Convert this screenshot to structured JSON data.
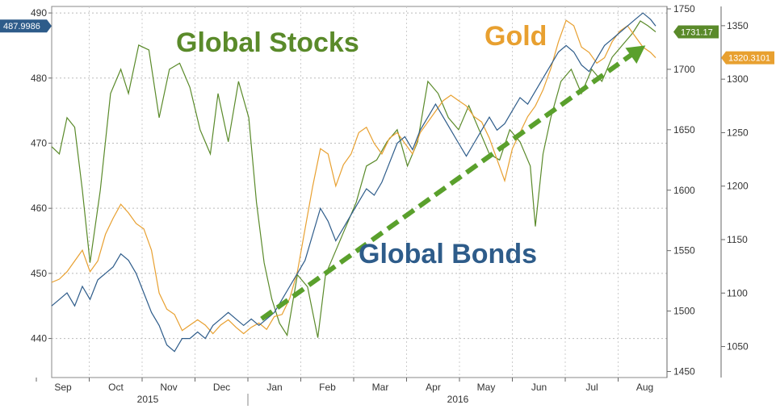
{
  "chart_data": {
    "type": "line",
    "title": "",
    "xlabel": "",
    "ylabel": "",
    "grid": true,
    "legend": "none",
    "x_tick_labels": [
      "Sep",
      "Oct",
      "Nov",
      "Dec",
      "Jan",
      "Feb",
      "Mar",
      "Apr",
      "May",
      "Jun",
      "Jul",
      "Aug"
    ],
    "year_labels": [
      "2015",
      "2016"
    ],
    "axes": {
      "left": {
        "ylim": [
          434,
          491
        ],
        "ticks": [
          440,
          450,
          460,
          470,
          480,
          490
        ]
      },
      "mid": {
        "ylim": [
          1445,
          1752
        ],
        "ticks": [
          1450,
          1500,
          1550,
          1600,
          1650,
          1700,
          1750
        ]
      },
      "right": {
        "ylim": [
          1021,
          1368
        ],
        "ticks": [
          1050,
          1100,
          1150,
          1200,
          1250,
          1300,
          1350
        ]
      }
    },
    "series": [
      {
        "name": "Global Stocks",
        "axis": "mid",
        "color": "#5a8a2a",
        "last_value_tag": "1731.17",
        "values": [
          [
            0,
            1636
          ],
          [
            0.3,
            1630
          ],
          [
            0.6,
            1660
          ],
          [
            0.9,
            1652
          ],
          [
            1.2,
            1600
          ],
          [
            1.5,
            1540
          ],
          [
            1.9,
            1600
          ],
          [
            2.3,
            1680
          ],
          [
            2.7,
            1700
          ],
          [
            3.0,
            1680
          ],
          [
            3.4,
            1720
          ],
          [
            3.8,
            1716
          ],
          [
            4.2,
            1660
          ],
          [
            4.6,
            1700
          ],
          [
            5.0,
            1705
          ],
          [
            5.4,
            1685
          ],
          [
            5.8,
            1650
          ],
          [
            6.2,
            1630
          ],
          [
            6.5,
            1680
          ],
          [
            6.9,
            1640
          ],
          [
            7.3,
            1690
          ],
          [
            7.7,
            1660
          ],
          [
            8.0,
            1590
          ],
          [
            8.3,
            1540
          ],
          [
            8.6,
            1510
          ],
          [
            8.9,
            1490
          ],
          [
            9.2,
            1480
          ],
          [
            9.6,
            1530
          ],
          [
            10.0,
            1520
          ],
          [
            10.4,
            1478
          ],
          [
            10.7,
            1530
          ],
          [
            11.1,
            1550
          ],
          [
            11.5,
            1570
          ],
          [
            11.9,
            1590
          ],
          [
            12.3,
            1620
          ],
          [
            12.7,
            1625
          ],
          [
            13.1,
            1640
          ],
          [
            13.5,
            1650
          ],
          [
            13.9,
            1620
          ],
          [
            14.3,
            1640
          ],
          [
            14.7,
            1690
          ],
          [
            15.1,
            1680
          ],
          [
            15.5,
            1660
          ],
          [
            15.9,
            1650
          ],
          [
            16.3,
            1670
          ],
          [
            16.7,
            1650
          ],
          [
            17.1,
            1630
          ],
          [
            17.5,
            1625
          ],
          [
            17.9,
            1650
          ],
          [
            18.3,
            1640
          ],
          [
            18.7,
            1620
          ],
          [
            18.9,
            1570
          ],
          [
            19.2,
            1630
          ],
          [
            19.5,
            1660
          ],
          [
            19.9,
            1690
          ],
          [
            20.3,
            1700
          ],
          [
            20.7,
            1680
          ],
          [
            21.1,
            1700
          ],
          [
            21.5,
            1690
          ],
          [
            21.9,
            1710
          ],
          [
            22.3,
            1720
          ],
          [
            22.7,
            1730
          ],
          [
            23.0,
            1740
          ],
          [
            23.3,
            1736
          ],
          [
            23.6,
            1731
          ]
        ]
      },
      {
        "name": "Gold",
        "axis": "right",
        "color": "#e8a030",
        "last_value_tag": "1320.3101",
        "values": [
          [
            0,
            1110
          ],
          [
            0.3,
            1113
          ],
          [
            0.6,
            1120
          ],
          [
            0.9,
            1130
          ],
          [
            1.2,
            1140
          ],
          [
            1.5,
            1120
          ],
          [
            1.8,
            1130
          ],
          [
            2.1,
            1155
          ],
          [
            2.4,
            1170
          ],
          [
            2.7,
            1183
          ],
          [
            3.0,
            1175
          ],
          [
            3.3,
            1165
          ],
          [
            3.6,
            1160
          ],
          [
            3.9,
            1140
          ],
          [
            4.2,
            1100
          ],
          [
            4.5,
            1085
          ],
          [
            4.8,
            1080
          ],
          [
            5.1,
            1065
          ],
          [
            5.4,
            1070
          ],
          [
            5.7,
            1075
          ],
          [
            6.0,
            1070
          ],
          [
            6.3,
            1062
          ],
          [
            6.6,
            1070
          ],
          [
            6.9,
            1075
          ],
          [
            7.2,
            1068
          ],
          [
            7.5,
            1062
          ],
          [
            7.8,
            1068
          ],
          [
            8.1,
            1072
          ],
          [
            8.4,
            1066
          ],
          [
            8.7,
            1078
          ],
          [
            9.0,
            1080
          ],
          [
            9.3,
            1095
          ],
          [
            9.6,
            1120
          ],
          [
            9.9,
            1160
          ],
          [
            10.2,
            1200
          ],
          [
            10.5,
            1235
          ],
          [
            10.8,
            1230
          ],
          [
            11.1,
            1200
          ],
          [
            11.4,
            1220
          ],
          [
            11.7,
            1230
          ],
          [
            12.0,
            1250
          ],
          [
            12.3,
            1255
          ],
          [
            12.6,
            1240
          ],
          [
            12.9,
            1230
          ],
          [
            13.2,
            1245
          ],
          [
            13.5,
            1250
          ],
          [
            13.8,
            1240
          ],
          [
            14.1,
            1230
          ],
          [
            14.4,
            1250
          ],
          [
            14.7,
            1260
          ],
          [
            15.0,
            1270
          ],
          [
            15.3,
            1280
          ],
          [
            15.6,
            1285
          ],
          [
            15.9,
            1280
          ],
          [
            16.2,
            1275
          ],
          [
            16.5,
            1265
          ],
          [
            16.8,
            1260
          ],
          [
            17.1,
            1245
          ],
          [
            17.4,
            1225
          ],
          [
            17.7,
            1205
          ],
          [
            18.0,
            1235
          ],
          [
            18.3,
            1250
          ],
          [
            18.6,
            1265
          ],
          [
            18.9,
            1275
          ],
          [
            19.2,
            1290
          ],
          [
            19.5,
            1310
          ],
          [
            19.8,
            1335
          ],
          [
            20.1,
            1355
          ],
          [
            20.4,
            1350
          ],
          [
            20.7,
            1330
          ],
          [
            21.0,
            1325
          ],
          [
            21.3,
            1315
          ],
          [
            21.6,
            1320
          ],
          [
            21.9,
            1335
          ],
          [
            22.2,
            1345
          ],
          [
            22.5,
            1350
          ],
          [
            22.8,
            1340
          ],
          [
            23.1,
            1330
          ],
          [
            23.4,
            1325
          ],
          [
            23.6,
            1320
          ]
        ]
      },
      {
        "name": "Global Bonds",
        "axis": "left",
        "color": "#2e5c8a",
        "last_value_tag": "487.9986",
        "values": [
          [
            0,
            445
          ],
          [
            0.3,
            446
          ],
          [
            0.6,
            447
          ],
          [
            0.9,
            445
          ],
          [
            1.2,
            448
          ],
          [
            1.5,
            446
          ],
          [
            1.8,
            449
          ],
          [
            2.1,
            450
          ],
          [
            2.4,
            451
          ],
          [
            2.7,
            453
          ],
          [
            3.0,
            452
          ],
          [
            3.3,
            450
          ],
          [
            3.6,
            447
          ],
          [
            3.9,
            444
          ],
          [
            4.2,
            442
          ],
          [
            4.5,
            439
          ],
          [
            4.8,
            438
          ],
          [
            5.1,
            440
          ],
          [
            5.4,
            440
          ],
          [
            5.7,
            441
          ],
          [
            6.0,
            440
          ],
          [
            6.3,
            442
          ],
          [
            6.6,
            443
          ],
          [
            6.9,
            444
          ],
          [
            7.2,
            443
          ],
          [
            7.5,
            442
          ],
          [
            7.8,
            443
          ],
          [
            8.1,
            442
          ],
          [
            8.4,
            443
          ],
          [
            8.7,
            444
          ],
          [
            9.0,
            446
          ],
          [
            9.3,
            448
          ],
          [
            9.6,
            450
          ],
          [
            9.9,
            452
          ],
          [
            10.2,
            456
          ],
          [
            10.5,
            460
          ],
          [
            10.8,
            458
          ],
          [
            11.1,
            455
          ],
          [
            11.4,
            457
          ],
          [
            11.7,
            459
          ],
          [
            12.0,
            461
          ],
          [
            12.3,
            463
          ],
          [
            12.6,
            462
          ],
          [
            12.9,
            464
          ],
          [
            13.2,
            467
          ],
          [
            13.5,
            470
          ],
          [
            13.8,
            471
          ],
          [
            14.1,
            469
          ],
          [
            14.4,
            472
          ],
          [
            14.7,
            474
          ],
          [
            15.0,
            476
          ],
          [
            15.3,
            474
          ],
          [
            15.6,
            472
          ],
          [
            15.9,
            470
          ],
          [
            16.2,
            468
          ],
          [
            16.5,
            470
          ],
          [
            16.8,
            472
          ],
          [
            17.1,
            474
          ],
          [
            17.4,
            472
          ],
          [
            17.7,
            473
          ],
          [
            18.0,
            475
          ],
          [
            18.3,
            477
          ],
          [
            18.6,
            476
          ],
          [
            18.9,
            478
          ],
          [
            19.2,
            480
          ],
          [
            19.5,
            482
          ],
          [
            19.8,
            484
          ],
          [
            20.1,
            485
          ],
          [
            20.4,
            484
          ],
          [
            20.7,
            482
          ],
          [
            21.0,
            481
          ],
          [
            21.3,
            483
          ],
          [
            21.6,
            485
          ],
          [
            21.9,
            486
          ],
          [
            22.2,
            487
          ],
          [
            22.5,
            488
          ],
          [
            22.8,
            489
          ],
          [
            23.1,
            490
          ],
          [
            23.4,
            489
          ],
          [
            23.6,
            488
          ]
        ]
      }
    ],
    "annotations": [
      {
        "text": "Global Stocks",
        "color": "#5a8a2a"
      },
      {
        "text": "Gold",
        "color": "#e8a030"
      },
      {
        "text": "Global Bonds",
        "color": "#2e5c8a"
      }
    ],
    "trend_arrow": {
      "color": "#5aa02c",
      "from_x": 8.2,
      "from_bond": 443,
      "to_x": 23.2,
      "to_bond": 485
    }
  }
}
